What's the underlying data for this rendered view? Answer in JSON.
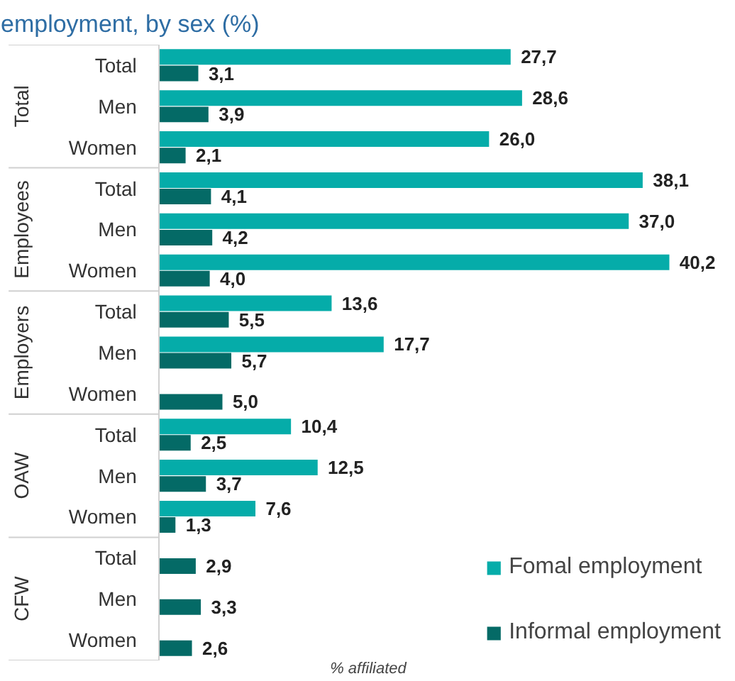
{
  "chart_data": {
    "type": "bar",
    "orientation": "horizontal",
    "title": "employment, by sex (%)",
    "xlabel": "% affiliated",
    "categories": [
      "Total",
      "Men",
      "Women",
      "Total",
      "Men",
      "Women",
      "Total",
      "Men",
      "Women",
      "Total",
      "Men",
      "Women",
      "Total",
      "Men",
      "Women"
    ],
    "annotations": [
      "Total",
      "Employees",
      "Employers",
      "OAW",
      "CFW"
    ],
    "series": [
      {
        "name": "Fomal employment",
        "color": "#05aca9",
        "values": [
          27.7,
          28.6,
          26.0,
          38.1,
          37.0,
          40.2,
          13.6,
          17.7,
          null,
          10.4,
          12.5,
          7.6,
          null,
          null,
          null
        ],
        "value_labels": [
          "27,7",
          "28,6",
          "26,0",
          "38,1",
          "37,0",
          "40,2",
          "13,6",
          "17,7",
          null,
          "10,4",
          "12,5",
          "7,6",
          null,
          null,
          null
        ]
      },
      {
        "name": "Informal employment",
        "color": "#046a66",
        "values": [
          3.1,
          3.9,
          2.1,
          4.1,
          4.2,
          4.0,
          5.5,
          5.7,
          5.0,
          2.5,
          3.7,
          1.3,
          2.9,
          3.3,
          2.6
        ],
        "value_labels": [
          "3,1",
          "3,9",
          "2,1",
          "4,1",
          "4,2",
          "4,0",
          "5,5",
          "5,7",
          "5,0",
          "2,5",
          "3,7",
          "1,3",
          "2,9",
          "3,3",
          "2,6"
        ]
      }
    ],
    "legend": "bottom right",
    "grid": false
  }
}
